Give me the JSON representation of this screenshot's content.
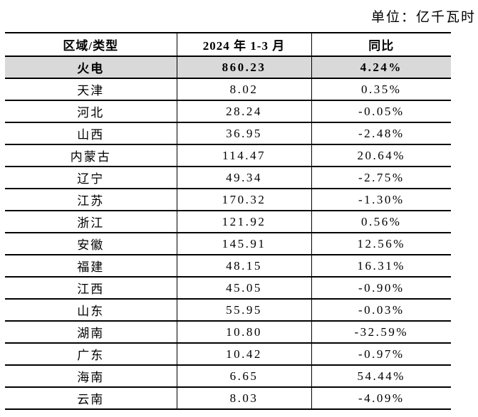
{
  "unit_label": "单位：亿千瓦时",
  "table": {
    "columns": [
      "区域/类型",
      "2024 年 1-3 月",
      "同比"
    ],
    "highlight_color": "#d9d9d9",
    "border_color": "#000000",
    "rows": [
      {
        "region": "火电",
        "value": "860.23",
        "yoy": "4.24%",
        "highlight": true
      },
      {
        "region": "天津",
        "value": "8.02",
        "yoy": "0.35%"
      },
      {
        "region": "河北",
        "value": "28.24",
        "yoy": "-0.05%"
      },
      {
        "region": "山西",
        "value": "36.95",
        "yoy": "-2.48%"
      },
      {
        "region": "内蒙古",
        "value": "114.47",
        "yoy": "20.64%"
      },
      {
        "region": "辽宁",
        "value": "49.34",
        "yoy": "-2.75%"
      },
      {
        "region": "江苏",
        "value": "170.32",
        "yoy": "-1.30%"
      },
      {
        "region": "浙江",
        "value": "121.92",
        "yoy": "0.56%"
      },
      {
        "region": "安徽",
        "value": "145.91",
        "yoy": "12.56%"
      },
      {
        "region": "福建",
        "value": "48.15",
        "yoy": "16.31%"
      },
      {
        "region": "江西",
        "value": "45.05",
        "yoy": "-0.90%"
      },
      {
        "region": "山东",
        "value": "55.95",
        "yoy": "-0.03%"
      },
      {
        "region": "湖南",
        "value": "10.80",
        "yoy": "-32.59%"
      },
      {
        "region": "广东",
        "value": "10.42",
        "yoy": "-0.97%"
      },
      {
        "region": "海南",
        "value": "6.65",
        "yoy": "54.44%"
      },
      {
        "region": "云南",
        "value": "8.03",
        "yoy": "-4.09%"
      }
    ]
  }
}
